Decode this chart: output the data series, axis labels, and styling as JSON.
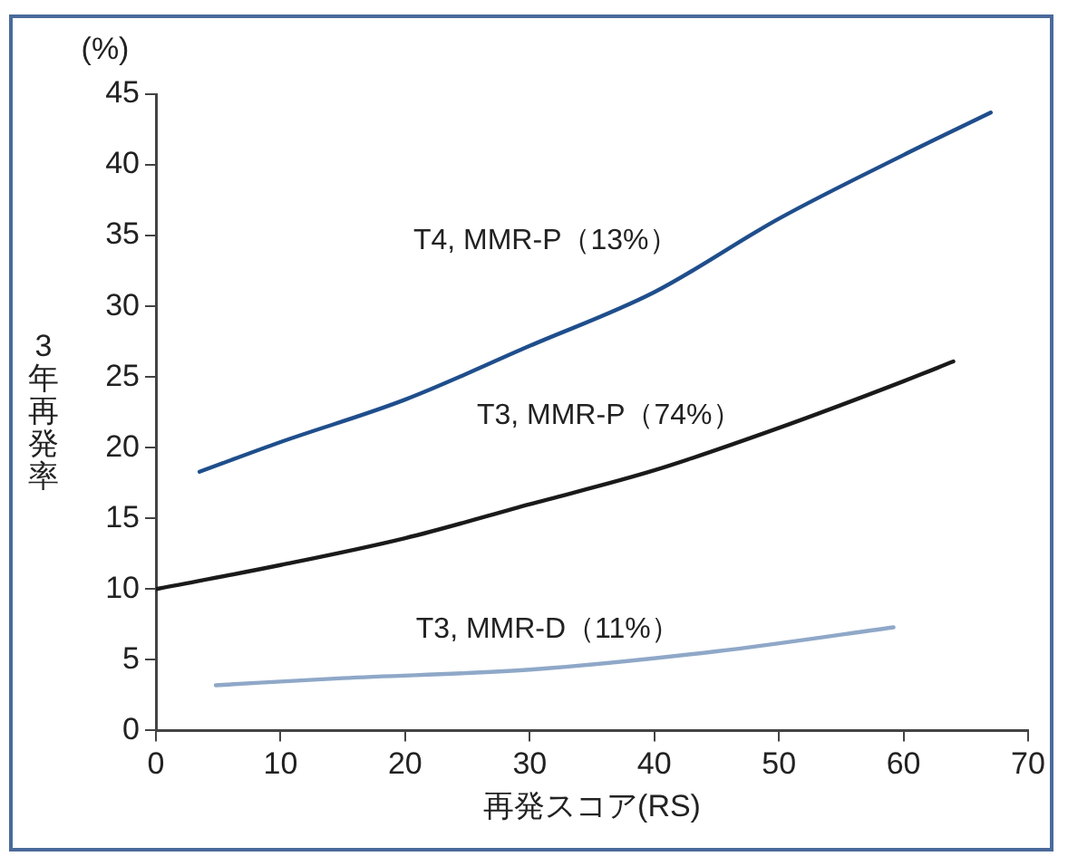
{
  "chart_data": {
    "type": "line",
    "xlabel": "再発スコア(RS)",
    "ylabel": "3年再発率",
    "annotations": [
      "(%)"
    ],
    "xlim": [
      0,
      70
    ],
    "xticks": [
      0,
      10,
      20,
      30,
      40,
      50,
      60,
      70
    ],
    "ylim": [
      0,
      45
    ],
    "yticks": [
      0,
      5,
      10,
      15,
      20,
      25,
      30,
      35,
      40,
      45
    ],
    "grid": false,
    "legend": false,
    "marker": "none",
    "line_style": "solid",
    "series": [
      {
        "name": "T4, MMR-P（13%）",
        "color": "#1f4e8c",
        "x": [
          3.5,
          10,
          20,
          30,
          40,
          50,
          60,
          67
        ],
        "values": [
          18.3,
          20.4,
          23.4,
          27.2,
          31.0,
          36.2,
          40.7,
          43.7
        ]
      },
      {
        "name": "T3, MMR-P（74%）",
        "color": "#1a1a1a",
        "x": [
          0,
          10,
          20,
          30,
          40,
          50,
          60,
          64
        ],
        "values": [
          10.0,
          11.7,
          13.6,
          16.0,
          18.4,
          21.4,
          24.7,
          26.1
        ]
      },
      {
        "name": "T3, MMR-D（11%）",
        "color": "#8fa8c8",
        "x": [
          4.8,
          15,
          30,
          45,
          59.2
        ],
        "values": [
          3.2,
          3.7,
          4.3,
          5.6,
          7.3
        ]
      }
    ]
  }
}
